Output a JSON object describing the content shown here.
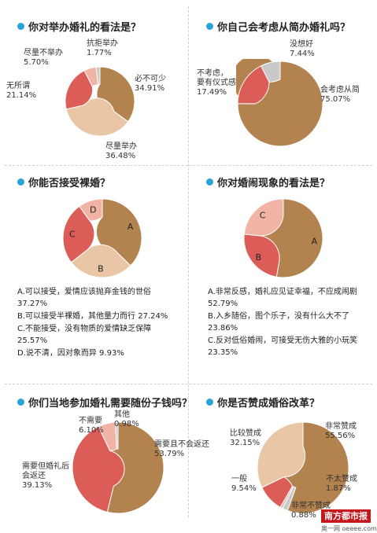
{
  "colors": {
    "brown": "#b2834f",
    "tan": "#e8c6a6",
    "red": "#dc5d57",
    "pink": "#f0b3a5",
    "gray": "#c9c9c9"
  },
  "chart_data": [
    {
      "type": "pie",
      "title": "你对举办婚礼的看法是？",
      "slices": [
        {
          "label": "必不可少",
          "value": 34.91,
          "pct": "34.91%",
          "color": "#b2834f"
        },
        {
          "label": "尽量举办",
          "value": 36.48,
          "pct": "36.48%",
          "color": "#e8c6a6"
        },
        {
          "label": "无所谓",
          "value": 21.14,
          "pct": "21.14%",
          "color": "#dc5d57"
        },
        {
          "label": "尽量不举办",
          "value": 5.7,
          "pct": "5.70%",
          "color": "#f0b3a5"
        },
        {
          "label": "抗拒举办",
          "value": 1.77,
          "pct": "1.77%",
          "color": "#c9c9c9"
        }
      ]
    },
    {
      "type": "pie",
      "title": "你自己会考虑从简办婚礼吗？",
      "slices": [
        {
          "label": "会考虑从简",
          "value": 75.07,
          "pct": "75.07%",
          "color": "#b2834f"
        },
        {
          "label": "不考虑，要有仪式感",
          "value": 17.49,
          "pct": "17.49%",
          "color": "#dc5d57"
        },
        {
          "label": "没想好",
          "value": 7.44,
          "pct": "7.44%",
          "color": "#c9c9c9"
        }
      ]
    },
    {
      "type": "pie",
      "title": "你能否接受裸婚？",
      "slices": [
        {
          "label": "A",
          "value": 37.27,
          "color": "#b2834f"
        },
        {
          "label": "B",
          "value": 27.24,
          "color": "#e8c6a6"
        },
        {
          "label": "C",
          "value": 25.57,
          "color": "#dc5d57"
        },
        {
          "label": "D",
          "value": 9.93,
          "color": "#f0b3a5"
        }
      ],
      "legend": [
        "A.可以接受，爱情应该抛弃金钱的世俗 37.27%",
        "B.可以接受半裸婚，其他量力而行 27.24%",
        "C.不能接受，没有物质的爱情缺乏保障 25.57%",
        "D.说不清，因对象而异 9.93%"
      ]
    },
    {
      "type": "pie",
      "title": "你对婚闹现象的看法是？",
      "slices": [
        {
          "label": "A",
          "value": 52.79,
          "color": "#b2834f"
        },
        {
          "label": "B",
          "value": 23.86,
          "color": "#dc5d57"
        },
        {
          "label": "C",
          "value": 23.35,
          "color": "#f0b3a5"
        }
      ],
      "legend": [
        "A.非常反感，婚礼应见证幸福，不应成闹剧 52.79%",
        "B.入乡随俗，图个乐子，没有什么大不了23.86%",
        "C.反对低俗婚闹，可接受无伤大雅的小玩笑23.35%"
      ]
    },
    {
      "type": "pie",
      "title": "你们当地参加婚礼需要随份子钱吗？",
      "slices": [
        {
          "label": "需要且不会返还",
          "value": 53.79,
          "pct": "53.79%",
          "color": "#b2834f"
        },
        {
          "label": "需要但婚礼后会返还",
          "value": 39.13,
          "pct": "39.13%",
          "color": "#dc5d57"
        },
        {
          "label": "不需要",
          "value": 6.1,
          "pct": "6.10%",
          "color": "#f0b3a5"
        },
        {
          "label": "其他",
          "value": 0.98,
          "pct": "0.98%",
          "color": "#c9c9c9"
        }
      ]
    },
    {
      "type": "pie",
      "title": "你是否赞成婚俗改革？",
      "slices": [
        {
          "label": "非常赞成",
          "value": 55.56,
          "pct": "55.56%",
          "color": "#b2834f"
        },
        {
          "label": "不太赞成",
          "value": 1.87,
          "pct": "1.87%",
          "color": "#c9c9c9"
        },
        {
          "label": "非常不赞成",
          "value": 0.88,
          "pct": "0.88%",
          "color": "#f0b3a5"
        },
        {
          "label": "一般",
          "value": 9.54,
          "pct": "9.54%",
          "color": "#dc5d57"
        },
        {
          "label": "比较赞成",
          "value": 32.15,
          "pct": "32.15%",
          "color": "#e8c6a6"
        }
      ]
    }
  ],
  "labels": {
    "c1": {
      "s0a": "必不可少",
      "s0b": "34.91%",
      "s1a": "尽量举办",
      "s1b": "36.48%",
      "s2a": "无所谓",
      "s2b": "21.14%",
      "s3a": "尽量不举办",
      "s3b": "5.70%",
      "s4a": "抗拒举办",
      "s4b": "1.77%"
    },
    "c2": {
      "s0a": "会考虑从简",
      "s0b": "75.07%",
      "s1a": "不考虑，",
      "s1b": "要有仪式感",
      "s1c": "17.49%",
      "s2a": "没想好",
      "s2b": "7.44%"
    },
    "c5": {
      "s0a": "需要且不会返还",
      "s0b": "53.79%",
      "s1a": "需要但婚礼后",
      "s1b": "会返还",
      "s1c": "39.13%",
      "s2a": "不需要",
      "s2b": "6.10%",
      "s3a": "其他",
      "s3b": "0.98%"
    },
    "c6": {
      "s0a": "非常赞成",
      "s0b": "55.56%",
      "s1a": "不太赞成",
      "s1b": "1.87%",
      "s2a": "非常不赞成",
      "s2b": "0.88%",
      "s3a": "一般",
      "s3b": "9.54%",
      "s4a": "比较赞成",
      "s4b": "32.15%"
    }
  },
  "branding": {
    "logo": "南方都市报",
    "watermark": "奥一网 oeeee.com"
  }
}
